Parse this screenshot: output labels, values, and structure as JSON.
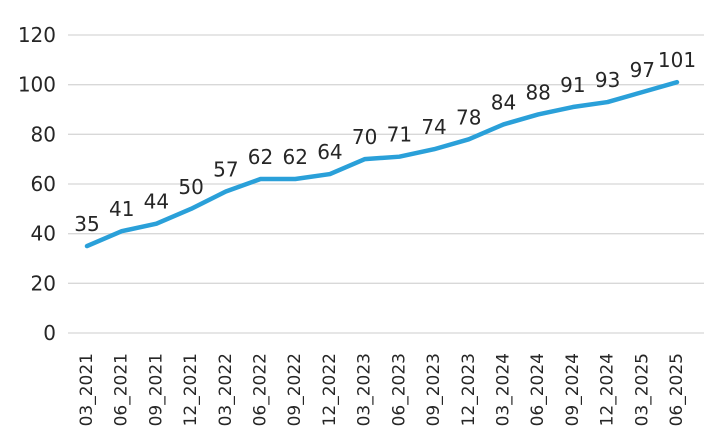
{
  "chart_data": {
    "type": "line",
    "title": "",
    "xlabel": "",
    "ylabel": "",
    "categories": [
      "03_2021",
      "06_2021",
      "09_2021",
      "12_2021",
      "03_2022",
      "06_2022",
      "09_2022",
      "12_2022",
      "03_2023",
      "06_2023",
      "09_2023",
      "12_2023",
      "03_2024",
      "06_2024",
      "09_2024",
      "12_2024",
      "03_2025",
      "06_2025"
    ],
    "values": [
      35,
      41,
      44,
      50,
      57,
      62,
      62,
      64,
      70,
      71,
      74,
      78,
      84,
      88,
      91,
      93,
      97,
      101
    ],
    "data_labels": [
      "35",
      "41",
      "44",
      "50",
      "57",
      "62",
      "62",
      "64",
      "70",
      "71",
      "74",
      "78",
      "84",
      "88",
      "91",
      "93",
      "97",
      "101"
    ],
    "ylim": [
      0,
      120
    ],
    "yticks": [
      0,
      20,
      40,
      60,
      80,
      100,
      120
    ],
    "ytick_labels": [
      "0",
      "20",
      "40",
      "60",
      "80",
      "100",
      "120"
    ],
    "grid": true,
    "legend": false,
    "xtick_rotation_deg": -90,
    "colors": {
      "line": "#2AA0D9",
      "grid": "#D8D8D8",
      "text": "#262626",
      "background": "#FFFFFF"
    }
  }
}
